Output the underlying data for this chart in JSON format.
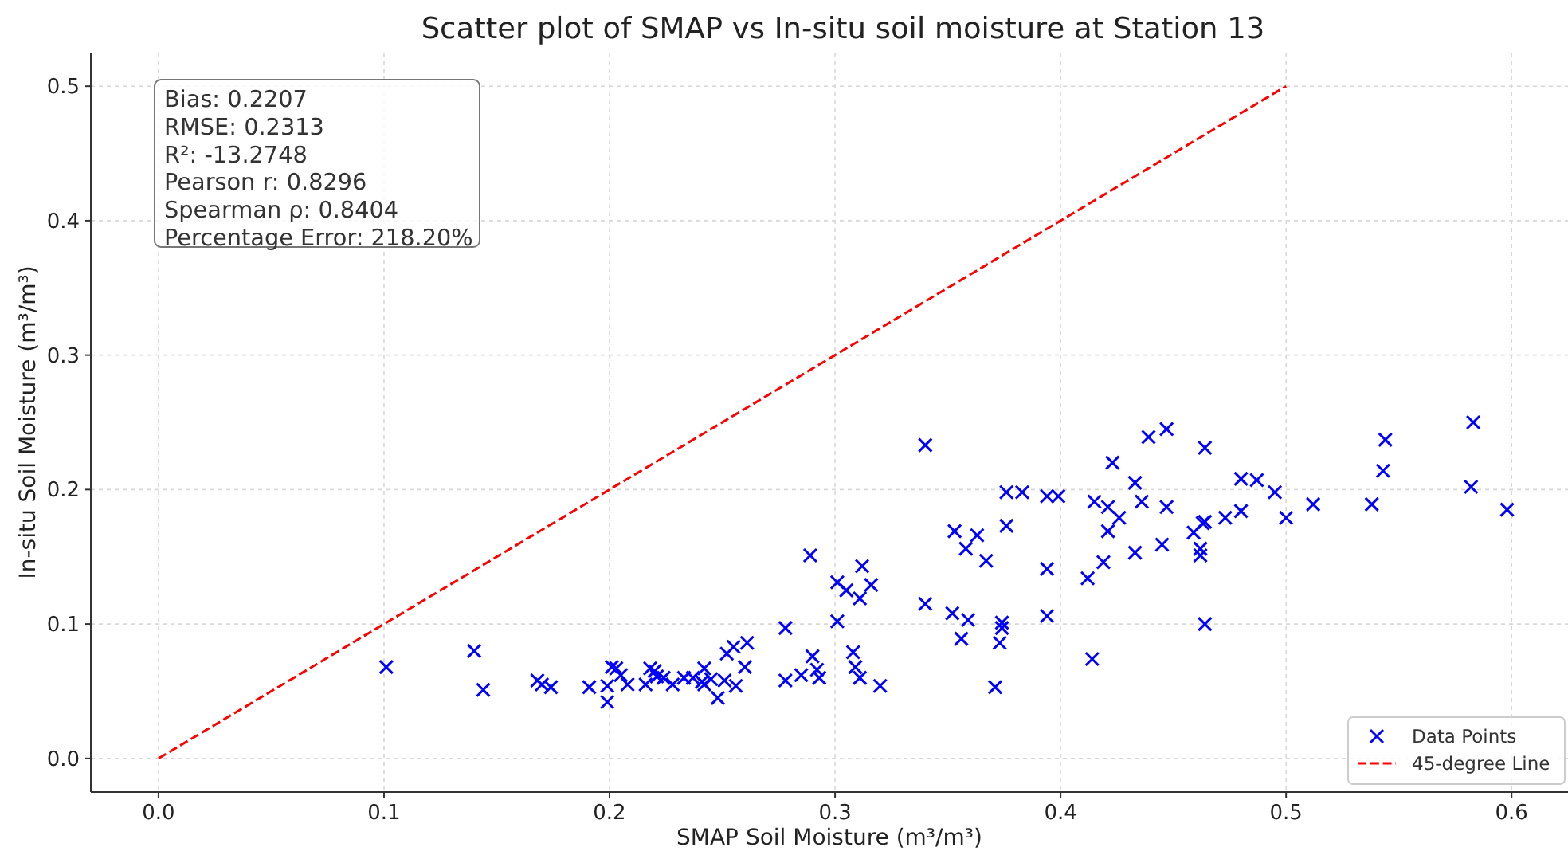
{
  "chart_data": {
    "type": "scatter",
    "title": "Scatter plot of SMAP vs In-situ soil moisture at Station 13",
    "xlabel": "SMAP Soil Moisture (m³/m³)",
    "ylabel": "In-situ Soil Moisture (m³/m³)",
    "annotations": [
      "Bias: 0.2207",
      "RMSE: 0.2313",
      "R²: -13.2748",
      "Pearson r: 0.8296",
      "Spearman ρ: 0.8404",
      "Percentage Error: 218.20%"
    ],
    "xlim": [
      -0.03,
      0.625
    ],
    "ylim": [
      -0.025,
      0.525
    ],
    "xticks": [
      {
        "value": 0,
        "label": "0.0"
      },
      0.1,
      0.2,
      0.3,
      0.4,
      0.5,
      0.6
    ],
    "yticks": [
      {
        "value": 0,
        "label": "0.0"
      },
      0.1,
      0.2,
      0.3,
      0.4,
      0.5
    ],
    "grid": true,
    "legend": "bottom right",
    "series": [
      {
        "name": "Data Points",
        "color": "#0000ff",
        "marker": "cross",
        "x": [
          0.101,
          0.14,
          0.144,
          0.168,
          0.17,
          0.174,
          0.191,
          0.199,
          0.199,
          0.201,
          0.203,
          0.205,
          0.208,
          0.216,
          0.218,
          0.22,
          0.221,
          0.224,
          0.228,
          0.233,
          0.237,
          0.241,
          0.242,
          0.242,
          0.245,
          0.248,
          0.251,
          0.252,
          0.255,
          0.256,
          0.26,
          0.261,
          0.278,
          0.278,
          0.285,
          0.289,
          0.29,
          0.292,
          0.293,
          0.301,
          0.301,
          0.305,
          0.308,
          0.309,
          0.311,
          0.311,
          0.312,
          0.316,
          0.32,
          0.34,
          0.34,
          0.352,
          0.353,
          0.356,
          0.358,
          0.359,
          0.363,
          0.367,
          0.371,
          0.373,
          0.374,
          0.374,
          0.376,
          0.376,
          0.383,
          0.394,
          0.394,
          0.394,
          0.399,
          0.412,
          0.414,
          0.415,
          0.419,
          0.421,
          0.421,
          0.423,
          0.426,
          0.433,
          0.433,
          0.436,
          0.439,
          0.445,
          0.447,
          0.447,
          0.459,
          0.462,
          0.462,
          0.463,
          0.464,
          0.464,
          0.464,
          0.473,
          0.48,
          0.48,
          0.487,
          0.495,
          0.5,
          0.512,
          0.538,
          0.543,
          0.544,
          0.582,
          0.583,
          0.598
        ],
        "values": [
          0.068,
          0.08,
          0.051,
          0.058,
          0.055,
          0.053,
          0.053,
          0.042,
          0.054,
          0.068,
          0.067,
          0.062,
          0.055,
          0.055,
          0.067,
          0.065,
          0.061,
          0.06,
          0.055,
          0.06,
          0.06,
          0.057,
          0.067,
          0.055,
          0.059,
          0.045,
          0.058,
          0.078,
          0.083,
          0.054,
          0.068,
          0.086,
          0.058,
          0.097,
          0.062,
          0.151,
          0.076,
          0.066,
          0.06,
          0.102,
          0.131,
          0.125,
          0.079,
          0.068,
          0.06,
          0.119,
          0.143,
          0.129,
          0.054,
          0.233,
          0.115,
          0.108,
          0.169,
          0.089,
          0.156,
          0.103,
          0.166,
          0.147,
          0.053,
          0.086,
          0.097,
          0.101,
          0.173,
          0.198,
          0.198,
          0.106,
          0.141,
          0.195,
          0.195,
          0.134,
          0.074,
          0.191,
          0.146,
          0.187,
          0.169,
          0.22,
          0.179,
          0.153,
          0.205,
          0.191,
          0.239,
          0.159,
          0.245,
          0.187,
          0.168,
          0.156,
          0.151,
          0.175,
          0.176,
          0.231,
          0.1,
          0.179,
          0.208,
          0.184,
          0.207,
          0.198,
          0.179,
          0.189,
          0.189,
          0.214,
          0.237,
          0.202,
          0.25,
          0.185
        ]
      },
      {
        "name": "45-degree Line",
        "type": "line",
        "color": "#ff0000",
        "line_style": "dashed",
        "x": [
          0,
          0.5
        ],
        "values": [
          0,
          0.5
        ]
      }
    ]
  }
}
